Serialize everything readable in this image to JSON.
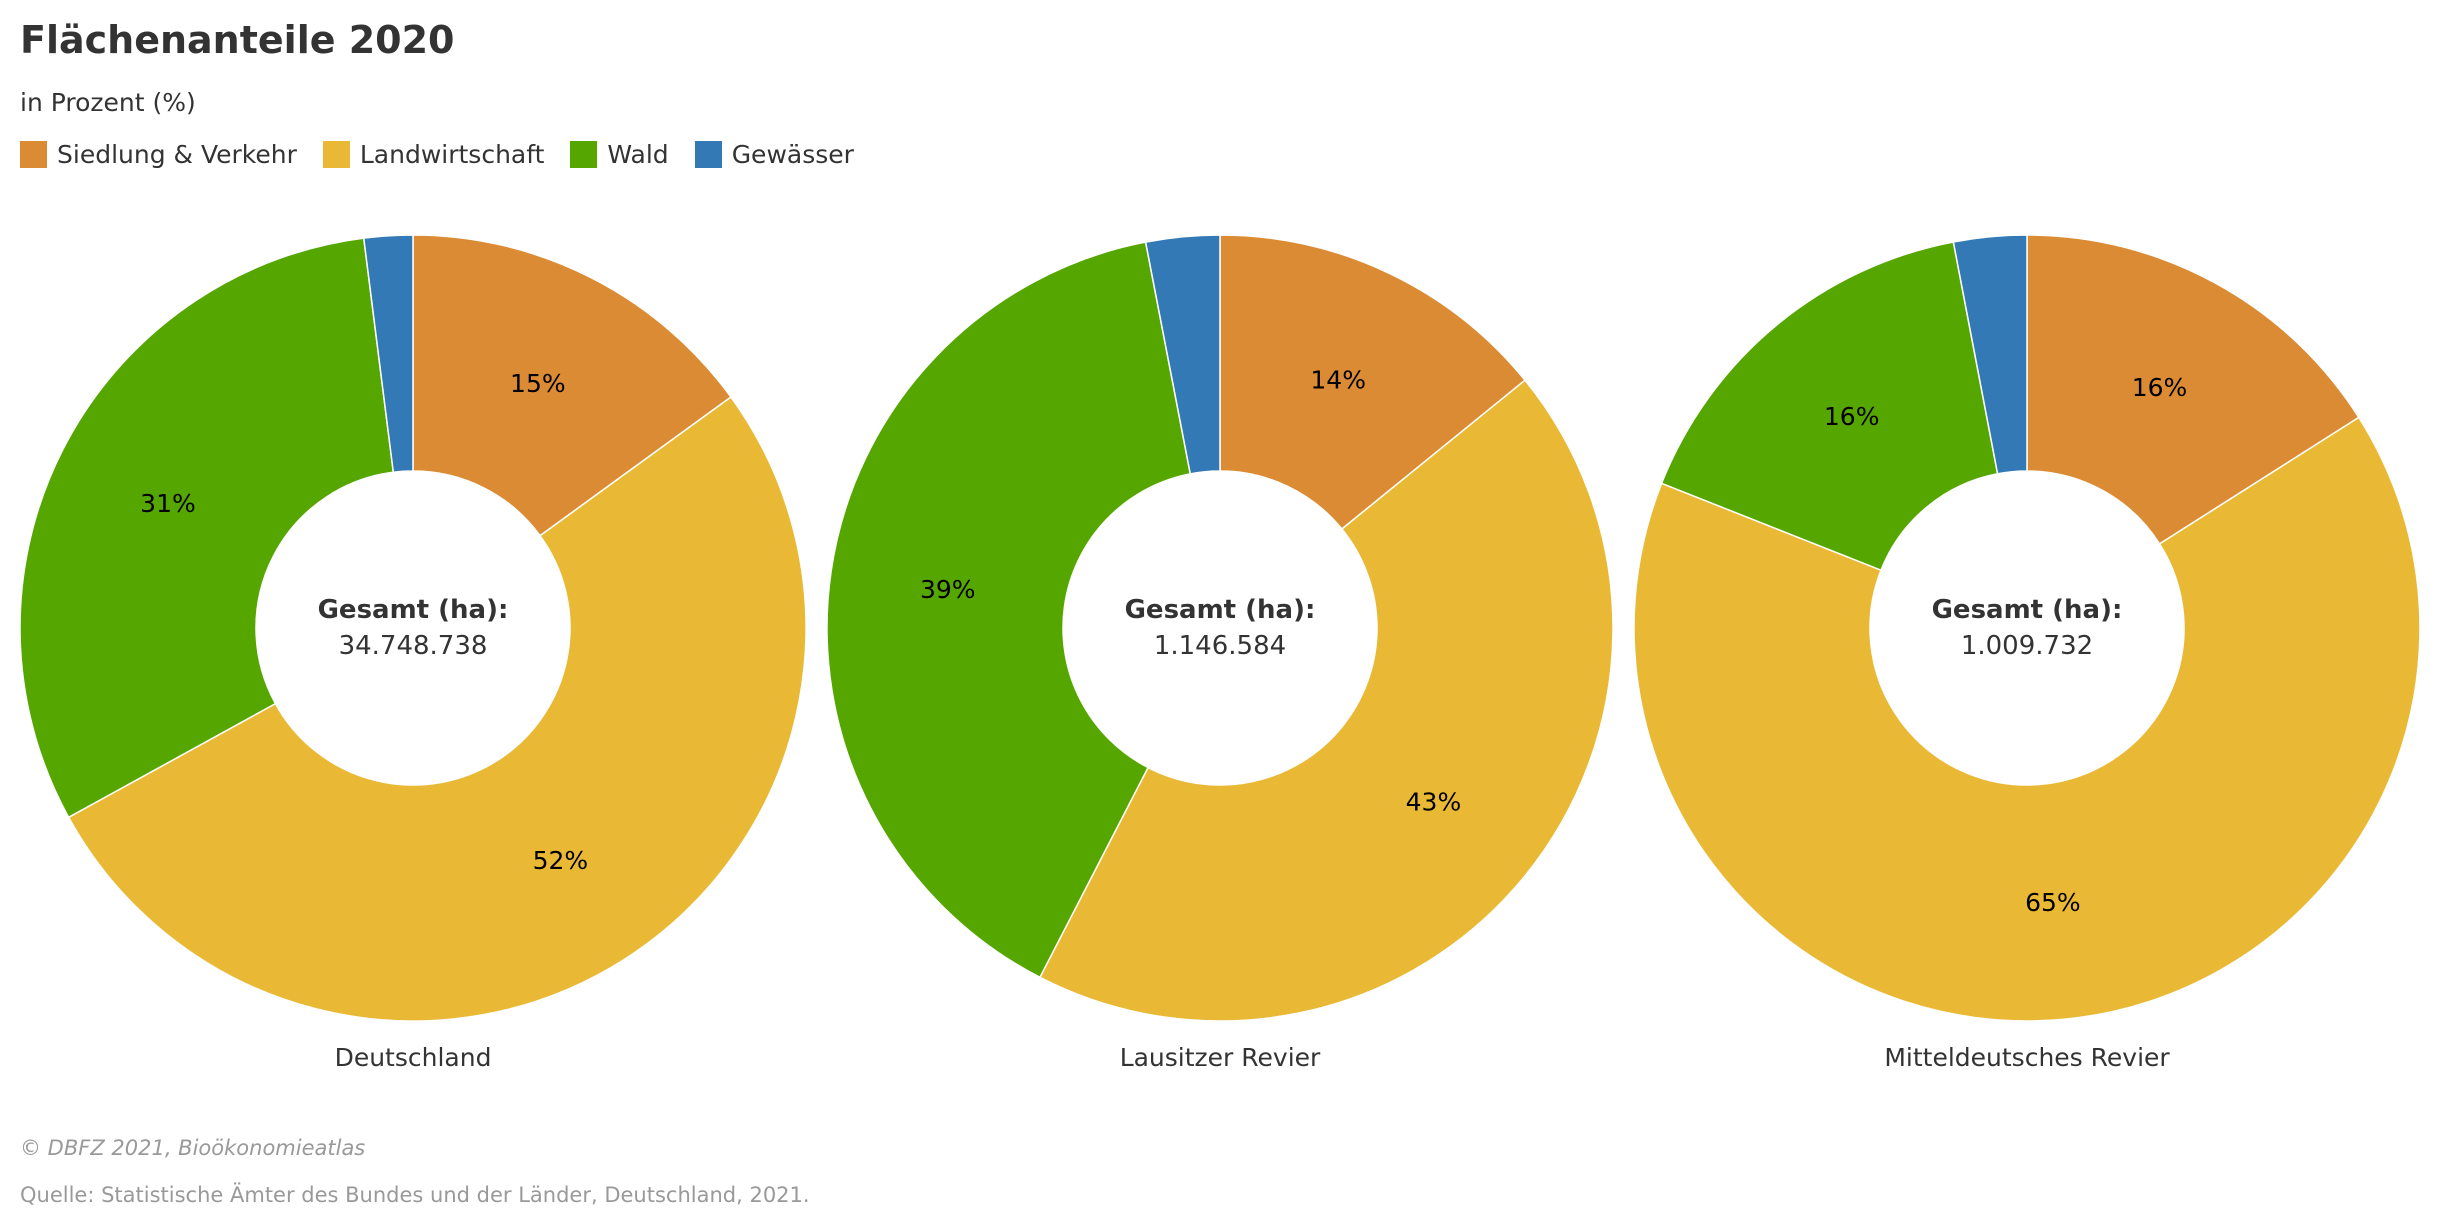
{
  "title": "Flächenanteile 2020",
  "subtitle": "in Prozent (%)",
  "legend": [
    {
      "label": "Siedlung & Verkehr",
      "color": "#db8b33"
    },
    {
      "label": "Landwirtschaft",
      "color": "#e9b935"
    },
    {
      "label": "Wald",
      "color": "#56a600"
    },
    {
      "label": "Gewässer",
      "color": "#3379b5"
    }
  ],
  "chart_data": [
    {
      "type": "pie",
      "name": "Deutschland",
      "categories": [
        "Siedlung & Verkehr",
        "Landwirtschaft",
        "Wald",
        "Gewässer"
      ],
      "values": [
        15,
        52,
        31,
        2
      ],
      "data_labels": [
        "15%",
        "52%",
        "31%",
        ""
      ],
      "center_label": "Gesamt (ha):",
      "center_value": "34.748.738"
    },
    {
      "type": "pie",
      "name": "Lausitzer Revier",
      "categories": [
        "Siedlung & Verkehr",
        "Landwirtschaft",
        "Wald",
        "Gewässer"
      ],
      "values": [
        14,
        43,
        39,
        3
      ],
      "data_labels": [
        "14%",
        "43%",
        "39%",
        ""
      ],
      "center_label": "Gesamt (ha):",
      "center_value": "1.146.584"
    },
    {
      "type": "pie",
      "name": "Mitteldeutsches Revier",
      "categories": [
        "Siedlung & Verkehr",
        "Landwirtschaft",
        "Wald",
        "Gewässer"
      ],
      "values": [
        16,
        65,
        16,
        3
      ],
      "data_labels": [
        "16%",
        "65%",
        "16%",
        ""
      ],
      "center_label": "Gesamt (ha):",
      "center_value": "1.009.732"
    }
  ],
  "credit": "© DBFZ 2021, Bioökonomieatlas",
  "source": "Quelle: Statistische Ämter des Bundes und der Länder, Deutschland, 2021."
}
